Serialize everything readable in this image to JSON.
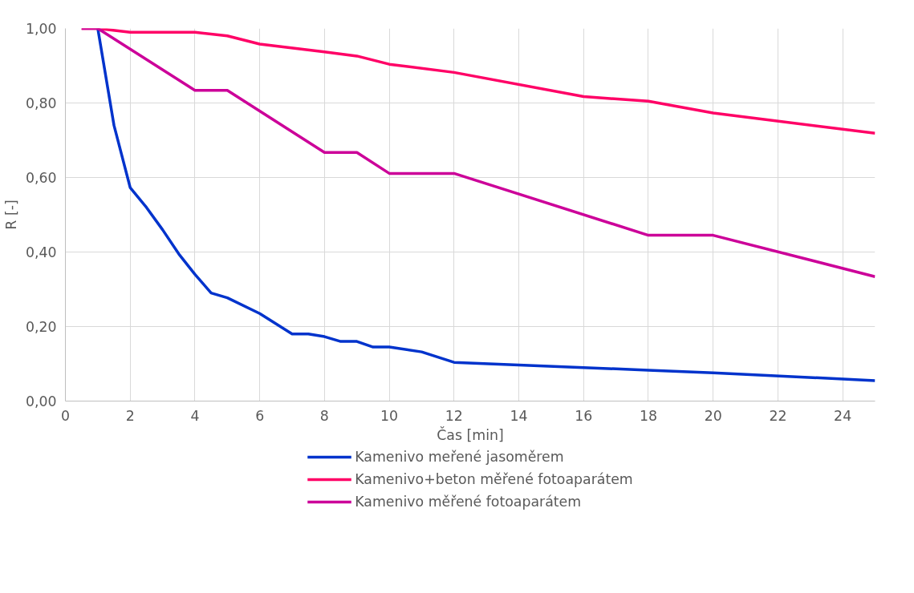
{
  "chart_data": {
    "type": "line",
    "xlabel": "Čas [min]",
    "ylabel": "R [-]",
    "xlim": [
      0,
      25
    ],
    "ylim": [
      0,
      1
    ],
    "xticks": [
      0,
      2,
      4,
      6,
      8,
      10,
      12,
      14,
      16,
      18,
      20,
      22,
      24
    ],
    "yticks": [
      {
        "value": 0,
        "label": "0,00"
      },
      {
        "value": 0.2,
        "label": "0,20"
      },
      {
        "value": 0.4,
        "label": "0,40"
      },
      {
        "value": 0.6,
        "label": "0,60"
      },
      {
        "value": 0.8,
        "label": "0,80"
      },
      {
        "value": 1.0,
        "label": "1,00"
      }
    ],
    "grid": true,
    "legend": "bottom",
    "marker": "none",
    "line_style": "solid",
    "series": [
      {
        "name": "Kamenivo meřené jasoměrem",
        "color": "#0033cc",
        "x": [
          1,
          1.5,
          2,
          2.5,
          3,
          3.5,
          4,
          4.5,
          5,
          6,
          7,
          7.5,
          8,
          8.5,
          9,
          9.5,
          10,
          11,
          12,
          16,
          18,
          20,
          25
        ],
        "values": [
          1.0,
          0.74,
          0.573,
          0.52,
          0.46,
          0.395,
          0.34,
          0.29,
          0.277,
          0.235,
          0.18,
          0.18,
          0.173,
          0.16,
          0.16,
          0.145,
          0.145,
          0.132,
          0.104,
          0.09,
          0.083,
          0.076,
          0.055
        ]
      },
      {
        "name": "Kamenivo+beton měřené fotoaparátem",
        "color": "#ff0066",
        "x": [
          0.5,
          1,
          2,
          4,
          5,
          6,
          8,
          9,
          10,
          12,
          16,
          18,
          20,
          25
        ],
        "values": [
          1.0,
          1.0,
          0.99,
          0.99,
          0.98,
          0.958,
          0.937,
          0.926,
          0.904,
          0.882,
          0.817,
          0.805,
          0.773,
          0.719
        ]
      },
      {
        "name": "Kamenivo měřené fotoaparátem",
        "color": "#cc0099",
        "x": [
          0.5,
          1,
          4,
          5,
          8,
          9,
          10,
          12,
          18,
          20,
          25
        ],
        "values": [
          1.0,
          1.0,
          0.834,
          0.834,
          0.667,
          0.667,
          0.611,
          0.611,
          0.445,
          0.445,
          0.334
        ]
      }
    ]
  }
}
